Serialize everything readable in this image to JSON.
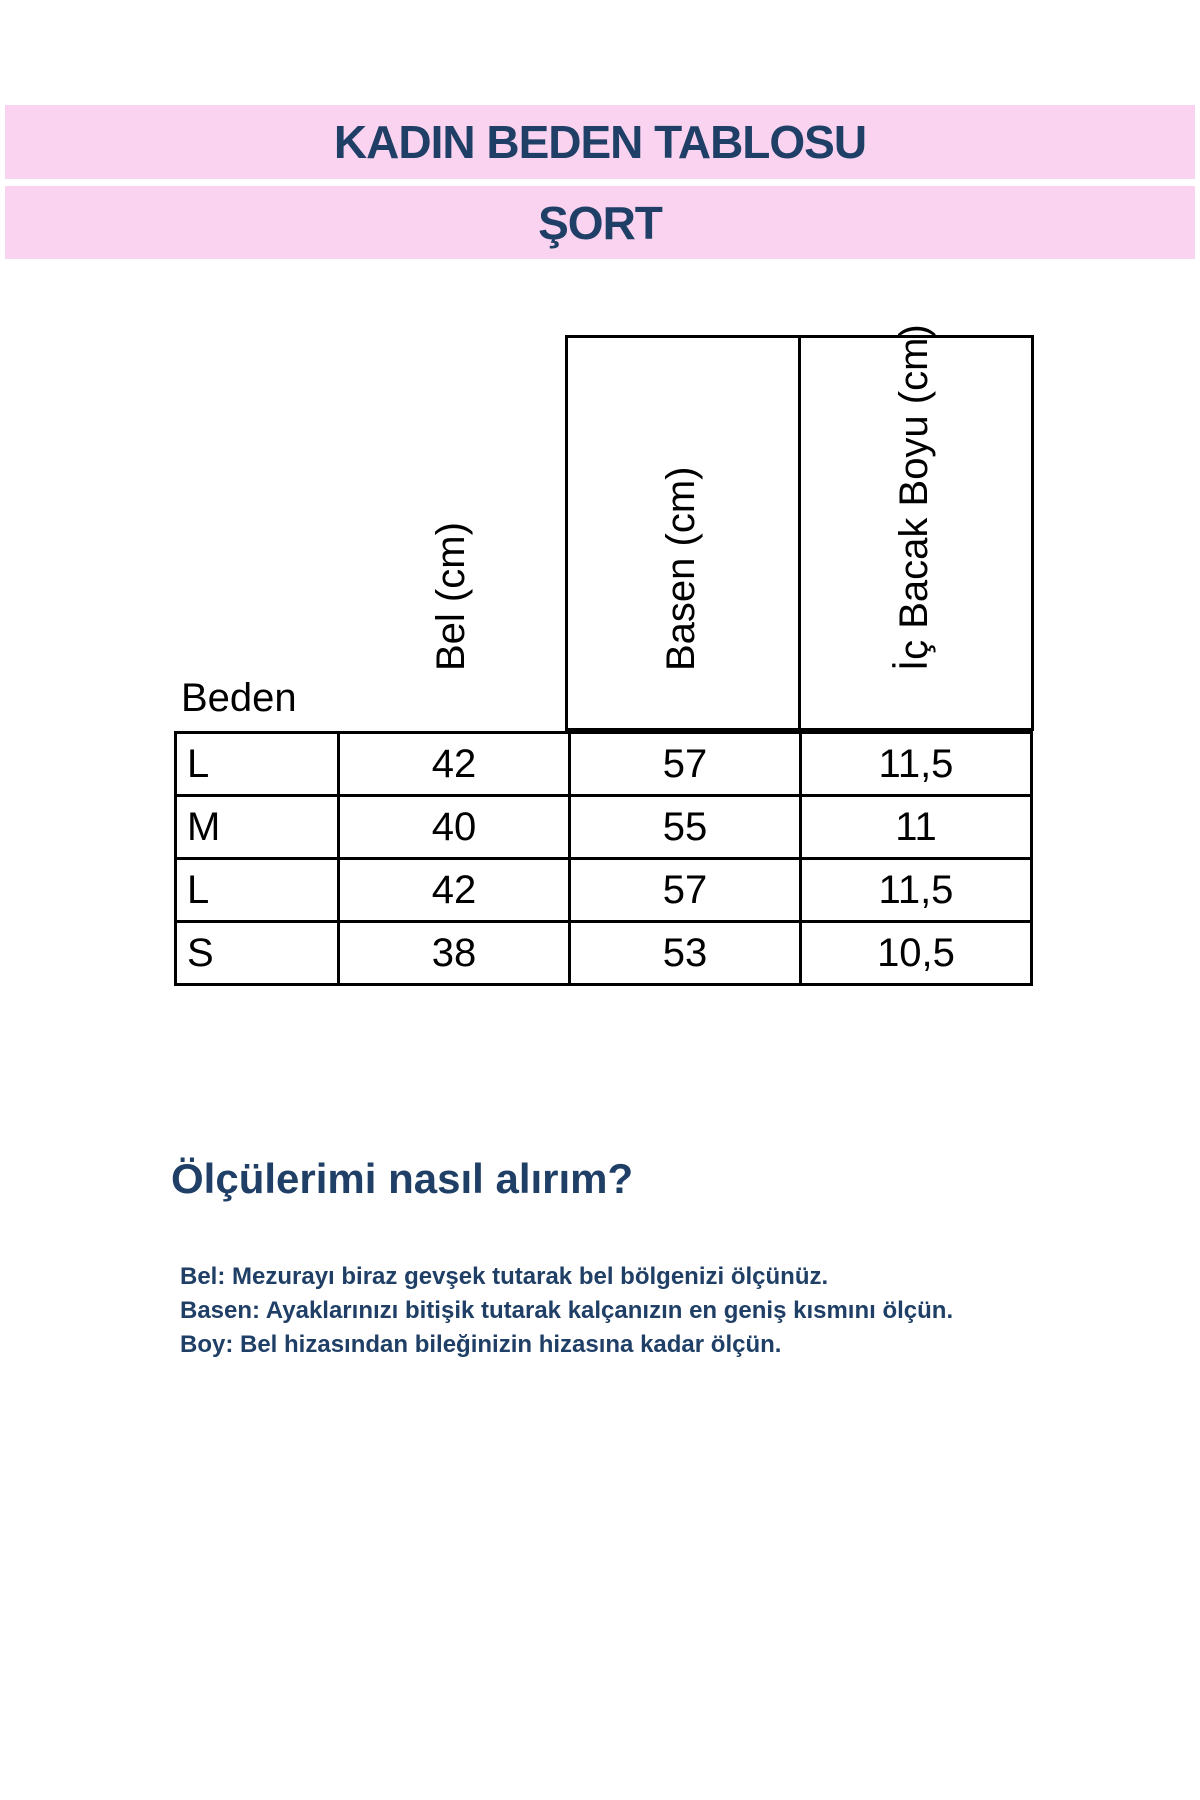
{
  "header": {
    "title": "KADIN BEDEN TABLOSU",
    "subtitle": "ŞORT"
  },
  "colors": {
    "band": "#f9d3f0",
    "text": "#1f3f66"
  },
  "table": {
    "columns": [
      "Beden",
      "Bel (cm)",
      "Basen (cm)",
      "İç Bacak Boyu (cm)"
    ],
    "rows": [
      [
        "L",
        "42",
        "57",
        "11,5"
      ],
      [
        "M",
        "40",
        "55",
        "11"
      ],
      [
        "L",
        "42",
        "57",
        "11,5"
      ],
      [
        "S",
        "38",
        "53",
        "10,5"
      ]
    ]
  },
  "guide": {
    "heading": "Ölçülerimi nasıl alırım?",
    "lines": [
      "Bel: Mezurayı biraz gevşek tutarak bel bölgenizi ölçünüz.",
      "Basen: Ayaklarınızı bitişik tutarak kalçanızın en geniş kısmını ölçün.",
      "Boy: Bel hizasından bileğinizin hizasına kadar ölçün."
    ]
  }
}
